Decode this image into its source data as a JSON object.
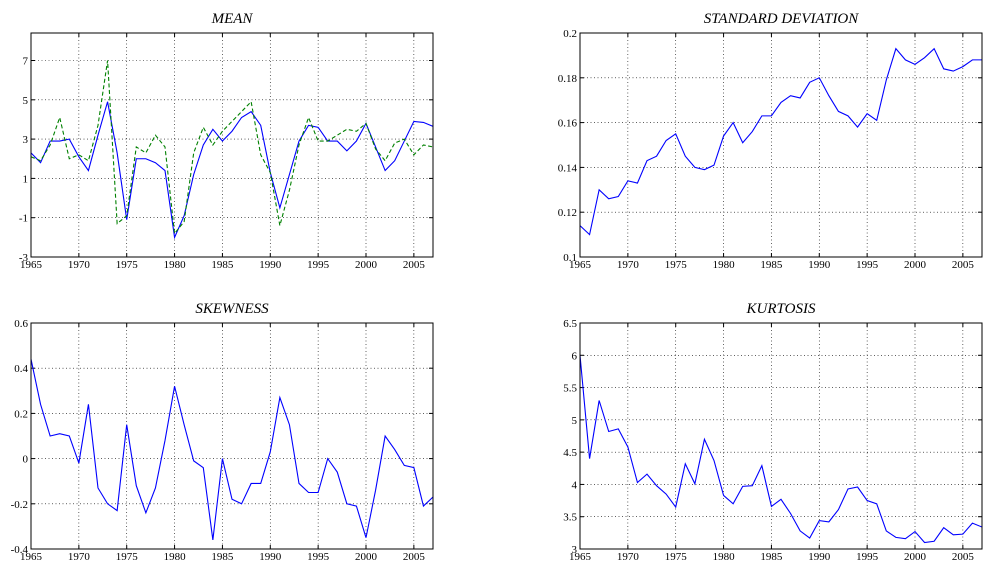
{
  "chart_data": [
    {
      "type": "line",
      "title": "MEAN",
      "xlim": [
        1965,
        2007
      ],
      "ylim": [
        -3,
        8.4
      ],
      "xticks": [
        1965,
        1970,
        1975,
        1980,
        1985,
        1990,
        1995,
        2000,
        2005
      ],
      "xtick_labels": [
        "1965",
        "1970",
        "1975",
        "1980",
        "1985",
        "1990",
        "1995",
        "2000",
        "2005"
      ],
      "yticks": [
        -3,
        -1,
        1,
        3,
        5,
        7
      ],
      "ytick_labels": [
        "-3",
        "-1",
        "1",
        "3",
        "5",
        "7"
      ],
      "grid": true,
      "x": [
        1965,
        1966,
        1967,
        1968,
        1969,
        1970,
        1971,
        1972,
        1973,
        1974,
        1975,
        1976,
        1977,
        1978,
        1979,
        1980,
        1981,
        1982,
        1983,
        1984,
        1985,
        1986,
        1987,
        1988,
        1989,
        1990,
        1991,
        1992,
        1993,
        1994,
        1995,
        1996,
        1997,
        1998,
        1999,
        2000,
        2001,
        2002,
        2003,
        2004,
        2005,
        2006,
        2007
      ],
      "series": [
        {
          "color": "#0000ff",
          "dash": "solid",
          "values": [
            2.3,
            1.8,
            2.9,
            2.9,
            3.0,
            2.1,
            1.4,
            3.2,
            4.9,
            2.3,
            -1.1,
            2.0,
            2.0,
            1.8,
            1.4,
            -2.0,
            -0.9,
            1.2,
            2.7,
            3.5,
            2.9,
            3.4,
            4.1,
            4.4,
            3.7,
            1.3,
            -0.5,
            1.2,
            2.9,
            3.7,
            3.6,
            2.9,
            2.9,
            2.4,
            2.9,
            3.8,
            2.6,
            1.4,
            1.9,
            2.9,
            3.9,
            3.85,
            3.65
          ]
        },
        {
          "color": "#008000",
          "dash": "dashed",
          "values": [
            2.1,
            1.9,
            2.7,
            4.1,
            2.0,
            2.2,
            1.9,
            3.7,
            7.0,
            -1.3,
            -0.9,
            2.6,
            2.3,
            3.2,
            2.6,
            -1.8,
            -1.2,
            2.3,
            3.6,
            2.7,
            3.4,
            3.9,
            4.4,
            4.9,
            2.2,
            1.3,
            -1.4,
            0.4,
            2.7,
            4.1,
            2.9,
            2.9,
            3.2,
            3.5,
            3.4,
            3.8,
            2.5,
            1.9,
            2.8,
            3.0,
            2.2,
            2.7,
            2.6
          ]
        }
      ]
    },
    {
      "type": "line",
      "title": "STANDARD DEVIATION",
      "xlim": [
        1965,
        2007
      ],
      "ylim": [
        0.1,
        0.2
      ],
      "xticks": [
        1965,
        1970,
        1975,
        1980,
        1985,
        1990,
        1995,
        2000,
        2005
      ],
      "xtick_labels": [
        "1965",
        "1970",
        "1975",
        "1980",
        "1985",
        "1990",
        "1995",
        "2000",
        "2005"
      ],
      "yticks": [
        0.1,
        0.12,
        0.14,
        0.16,
        0.18,
        0.2
      ],
      "ytick_labels": [
        "0.1",
        "0.12",
        "0.14",
        "0.16",
        "0.18",
        "0.2"
      ],
      "grid": true,
      "x": [
        1965,
        1966,
        1967,
        1968,
        1969,
        1970,
        1971,
        1972,
        1973,
        1974,
        1975,
        1976,
        1977,
        1978,
        1979,
        1980,
        1981,
        1982,
        1983,
        1984,
        1985,
        1986,
        1987,
        1988,
        1989,
        1990,
        1991,
        1992,
        1993,
        1994,
        1995,
        1996,
        1997,
        1998,
        1999,
        2000,
        2001,
        2002,
        2003,
        2004,
        2005,
        2006,
        2007
      ],
      "series": [
        {
          "color": "#0000ff",
          "dash": "solid",
          "values": [
            0.114,
            0.11,
            0.13,
            0.126,
            0.127,
            0.134,
            0.133,
            0.143,
            0.145,
            0.152,
            0.155,
            0.145,
            0.14,
            0.139,
            0.141,
            0.154,
            0.16,
            0.151,
            0.156,
            0.163,
            0.163,
            0.169,
            0.172,
            0.171,
            0.178,
            0.18,
            0.172,
            0.165,
            0.163,
            0.158,
            0.164,
            0.161,
            0.179,
            0.193,
            0.188,
            0.186,
            0.189,
            0.193,
            0.184,
            0.183,
            0.185,
            0.188,
            0.188
          ]
        }
      ]
    },
    {
      "type": "line",
      "title": "SKEWNESS",
      "xlim": [
        1965,
        2007
      ],
      "ylim": [
        -0.4,
        0.6
      ],
      "xticks": [
        1965,
        1970,
        1975,
        1980,
        1985,
        1990,
        1995,
        2000,
        2005
      ],
      "xtick_labels": [
        "1965",
        "1970",
        "1975",
        "1980",
        "1985",
        "1990",
        "1995",
        "2000",
        "2005"
      ],
      "yticks": [
        -0.4,
        -0.2,
        0,
        0.2,
        0.4,
        0.6
      ],
      "ytick_labels": [
        "-0.4",
        "-0.2",
        "0",
        "0.2",
        "0.4",
        "0.6"
      ],
      "grid": true,
      "x": [
        1965,
        1966,
        1967,
        1968,
        1969,
        1970,
        1971,
        1972,
        1973,
        1974,
        1975,
        1976,
        1977,
        1978,
        1979,
        1980,
        1981,
        1982,
        1983,
        1984,
        1985,
        1986,
        1987,
        1988,
        1989,
        1990,
        1991,
        1992,
        1993,
        1994,
        1995,
        1996,
        1997,
        1998,
        1999,
        2000,
        2001,
        2002,
        2003,
        2004,
        2005,
        2006,
        2007
      ],
      "series": [
        {
          "color": "#0000ff",
          "dash": "solid",
          "values": [
            0.44,
            0.24,
            0.1,
            0.11,
            0.1,
            -0.02,
            0.24,
            -0.13,
            -0.2,
            -0.23,
            0.15,
            -0.12,
            -0.24,
            -0.13,
            0.08,
            0.32,
            0.15,
            -0.01,
            -0.04,
            -0.36,
            0.0,
            -0.18,
            -0.2,
            -0.11,
            -0.11,
            0.03,
            0.27,
            0.15,
            -0.11,
            -0.15,
            -0.15,
            0.0,
            -0.06,
            -0.2,
            -0.21,
            -0.35,
            -0.14,
            0.1,
            0.04,
            -0.03,
            -0.04,
            -0.21,
            -0.17
          ]
        }
      ]
    },
    {
      "type": "line",
      "title": "KURTOSIS",
      "xlim": [
        1965,
        2007
      ],
      "ylim": [
        3,
        6.5
      ],
      "xticks": [
        1965,
        1970,
        1975,
        1980,
        1985,
        1990,
        1995,
        2000,
        2005
      ],
      "xtick_labels": [
        "1965",
        "1970",
        "1975",
        "1980",
        "1985",
        "1990",
        "1995",
        "2000",
        "2005"
      ],
      "yticks": [
        3,
        3.5,
        4,
        4.5,
        5,
        5.5,
        6,
        6.5
      ],
      "ytick_labels": [
        "3",
        "3.5",
        "4",
        "4.5",
        "5",
        "5.5",
        "6",
        "6.5"
      ],
      "grid": true,
      "x": [
        1965,
        1966,
        1967,
        1968,
        1969,
        1970,
        1971,
        1972,
        1973,
        1974,
        1975,
        1976,
        1977,
        1978,
        1979,
        1980,
        1981,
        1982,
        1983,
        1984,
        1985,
        1986,
        1987,
        1988,
        1989,
        1990,
        1991,
        1992,
        1993,
        1994,
        1995,
        1996,
        1997,
        1998,
        1999,
        2000,
        2001,
        2002,
        2003,
        2004,
        2005,
        2006,
        2007
      ],
      "series": [
        {
          "color": "#0000ff",
          "dash": "solid",
          "values": [
            6.0,
            4.4,
            5.3,
            4.82,
            4.86,
            4.58,
            4.03,
            4.16,
            3.98,
            3.85,
            3.65,
            4.32,
            4.01,
            4.7,
            4.37,
            3.83,
            3.7,
            3.97,
            3.98,
            4.29,
            3.66,
            3.77,
            3.55,
            3.28,
            3.17,
            3.44,
            3.42,
            3.61,
            3.93,
            3.96,
            3.75,
            3.7,
            3.28,
            3.18,
            3.16,
            3.27,
            3.1,
            3.12,
            3.33,
            3.22,
            3.23,
            3.4,
            3.34
          ]
        }
      ]
    }
  ]
}
